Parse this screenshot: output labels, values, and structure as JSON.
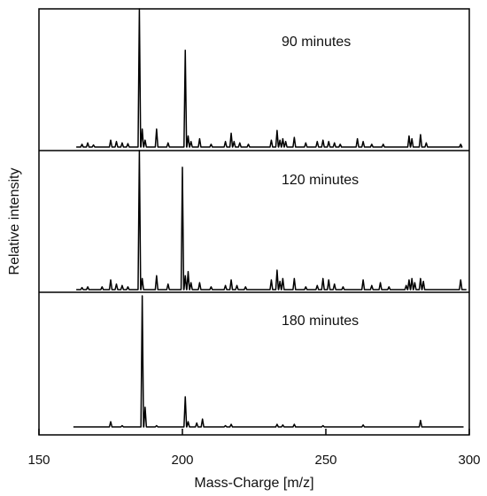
{
  "chart_data": {
    "type": "line",
    "title": "",
    "xlabel": "Mass-Charge [m/z]",
    "ylabel": "Relative intensity",
    "xlim": [
      150,
      300
    ],
    "xticks": [
      150,
      200,
      250,
      300
    ],
    "grid": false,
    "legend": "none",
    "line_color": "#000000",
    "series": [
      {
        "name": "90 minutes",
        "peaks": [
          {
            "mz": 165,
            "y": 0.02
          },
          {
            "mz": 167,
            "y": 0.03
          },
          {
            "mz": 169,
            "y": 0.015
          },
          {
            "mz": 175,
            "y": 0.05
          },
          {
            "mz": 177,
            "y": 0.04
          },
          {
            "mz": 179,
            "y": 0.03
          },
          {
            "mz": 181,
            "y": 0.025
          },
          {
            "mz": 185,
            "y": 1.0
          },
          {
            "mz": 186,
            "y": 0.13
          },
          {
            "mz": 187,
            "y": 0.05
          },
          {
            "mz": 191,
            "y": 0.13
          },
          {
            "mz": 195,
            "y": 0.03
          },
          {
            "mz": 201,
            "y": 0.7
          },
          {
            "mz": 202,
            "y": 0.08
          },
          {
            "mz": 203,
            "y": 0.04
          },
          {
            "mz": 206,
            "y": 0.06
          },
          {
            "mz": 210,
            "y": 0.02
          },
          {
            "mz": 215,
            "y": 0.04
          },
          {
            "mz": 217,
            "y": 0.1
          },
          {
            "mz": 218,
            "y": 0.04
          },
          {
            "mz": 220,
            "y": 0.03
          },
          {
            "mz": 223,
            "y": 0.02
          },
          {
            "mz": 231,
            "y": 0.05
          },
          {
            "mz": 233,
            "y": 0.12
          },
          {
            "mz": 234,
            "y": 0.05
          },
          {
            "mz": 235,
            "y": 0.06
          },
          {
            "mz": 236,
            "y": 0.04
          },
          {
            "mz": 239,
            "y": 0.07
          },
          {
            "mz": 243,
            "y": 0.03
          },
          {
            "mz": 247,
            "y": 0.04
          },
          {
            "mz": 249,
            "y": 0.05
          },
          {
            "mz": 251,
            "y": 0.04
          },
          {
            "mz": 253,
            "y": 0.03
          },
          {
            "mz": 255,
            "y": 0.02
          },
          {
            "mz": 261,
            "y": 0.06
          },
          {
            "mz": 263,
            "y": 0.04
          },
          {
            "mz": 266,
            "y": 0.02
          },
          {
            "mz": 270,
            "y": 0.02
          },
          {
            "mz": 279,
            "y": 0.08
          },
          {
            "mz": 280,
            "y": 0.06
          },
          {
            "mz": 283,
            "y": 0.09
          },
          {
            "mz": 285,
            "y": 0.03
          },
          {
            "mz": 297,
            "y": 0.02
          }
        ]
      },
      {
        "name": "120 minutes",
        "peaks": [
          {
            "mz": 165,
            "y": 0.015
          },
          {
            "mz": 167,
            "y": 0.02
          },
          {
            "mz": 172,
            "y": 0.02
          },
          {
            "mz": 175,
            "y": 0.07
          },
          {
            "mz": 177,
            "y": 0.04
          },
          {
            "mz": 179,
            "y": 0.03
          },
          {
            "mz": 181,
            "y": 0.02
          },
          {
            "mz": 185,
            "y": 1.0
          },
          {
            "mz": 186,
            "y": 0.08
          },
          {
            "mz": 191,
            "y": 0.1
          },
          {
            "mz": 195,
            "y": 0.04
          },
          {
            "mz": 200,
            "y": 0.88
          },
          {
            "mz": 201,
            "y": 0.1
          },
          {
            "mz": 202,
            "y": 0.13
          },
          {
            "mz": 203,
            "y": 0.05
          },
          {
            "mz": 206,
            "y": 0.05
          },
          {
            "mz": 210,
            "y": 0.02
          },
          {
            "mz": 215,
            "y": 0.03
          },
          {
            "mz": 217,
            "y": 0.07
          },
          {
            "mz": 219,
            "y": 0.03
          },
          {
            "mz": 222,
            "y": 0.02
          },
          {
            "mz": 231,
            "y": 0.07
          },
          {
            "mz": 233,
            "y": 0.14
          },
          {
            "mz": 234,
            "y": 0.06
          },
          {
            "mz": 235,
            "y": 0.08
          },
          {
            "mz": 239,
            "y": 0.08
          },
          {
            "mz": 243,
            "y": 0.02
          },
          {
            "mz": 247,
            "y": 0.03
          },
          {
            "mz": 249,
            "y": 0.08
          },
          {
            "mz": 251,
            "y": 0.07
          },
          {
            "mz": 253,
            "y": 0.04
          },
          {
            "mz": 256,
            "y": 0.02
          },
          {
            "mz": 263,
            "y": 0.07
          },
          {
            "mz": 266,
            "y": 0.03
          },
          {
            "mz": 269,
            "y": 0.05
          },
          {
            "mz": 272,
            "y": 0.02
          },
          {
            "mz": 278,
            "y": 0.03
          },
          {
            "mz": 279,
            "y": 0.07
          },
          {
            "mz": 280,
            "y": 0.08
          },
          {
            "mz": 281,
            "y": 0.05
          },
          {
            "mz": 283,
            "y": 0.08
          },
          {
            "mz": 284,
            "y": 0.06
          },
          {
            "mz": 297,
            "y": 0.07
          }
        ]
      },
      {
        "name": "180 minutes",
        "peaks": [
          {
            "mz": 175,
            "y": 0.04
          },
          {
            "mz": 179,
            "y": 0.01
          },
          {
            "mz": 186,
            "y": 1.0
          },
          {
            "mz": 187,
            "y": 0.15
          },
          {
            "mz": 191,
            "y": 0.01
          },
          {
            "mz": 201,
            "y": 0.23
          },
          {
            "mz": 202,
            "y": 0.04
          },
          {
            "mz": 205,
            "y": 0.03
          },
          {
            "mz": 207,
            "y": 0.06
          },
          {
            "mz": 215,
            "y": 0.01
          },
          {
            "mz": 217,
            "y": 0.02
          },
          {
            "mz": 233,
            "y": 0.02
          },
          {
            "mz": 235,
            "y": 0.015
          },
          {
            "mz": 239,
            "y": 0.02
          },
          {
            "mz": 249,
            "y": 0.01
          },
          {
            "mz": 263,
            "y": 0.015
          },
          {
            "mz": 283,
            "y": 0.05
          }
        ]
      }
    ]
  }
}
